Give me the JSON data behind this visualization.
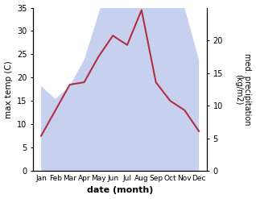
{
  "months": [
    "Jan",
    "Feb",
    "Mar",
    "Apr",
    "May",
    "Jun",
    "Jul",
    "Aug",
    "Sep",
    "Oct",
    "Nov",
    "Dec"
  ],
  "max_temp": [
    7.5,
    13,
    18.5,
    19,
    24.5,
    29,
    27,
    34.5,
    19,
    15,
    13,
    8.5
  ],
  "precipitation": [
    13,
    11,
    13,
    17,
    24,
    32,
    32,
    33,
    29,
    29,
    25,
    17
  ],
  "temp_fill_color": "#c8d0f0",
  "precip_line_color": "#b03040",
  "left_ylabel": "max temp (C)",
  "right_ylabel": "med. precipitation\n(kg/m2)",
  "xlabel": "date (month)",
  "ylim_left": [
    0,
    35
  ],
  "ylim_right": [
    0,
    25
  ],
  "yticks_left": [
    0,
    5,
    10,
    15,
    20,
    25,
    30,
    35
  ],
  "yticks_right": [
    0,
    5,
    10,
    15,
    20
  ],
  "background_color": "#ffffff"
}
